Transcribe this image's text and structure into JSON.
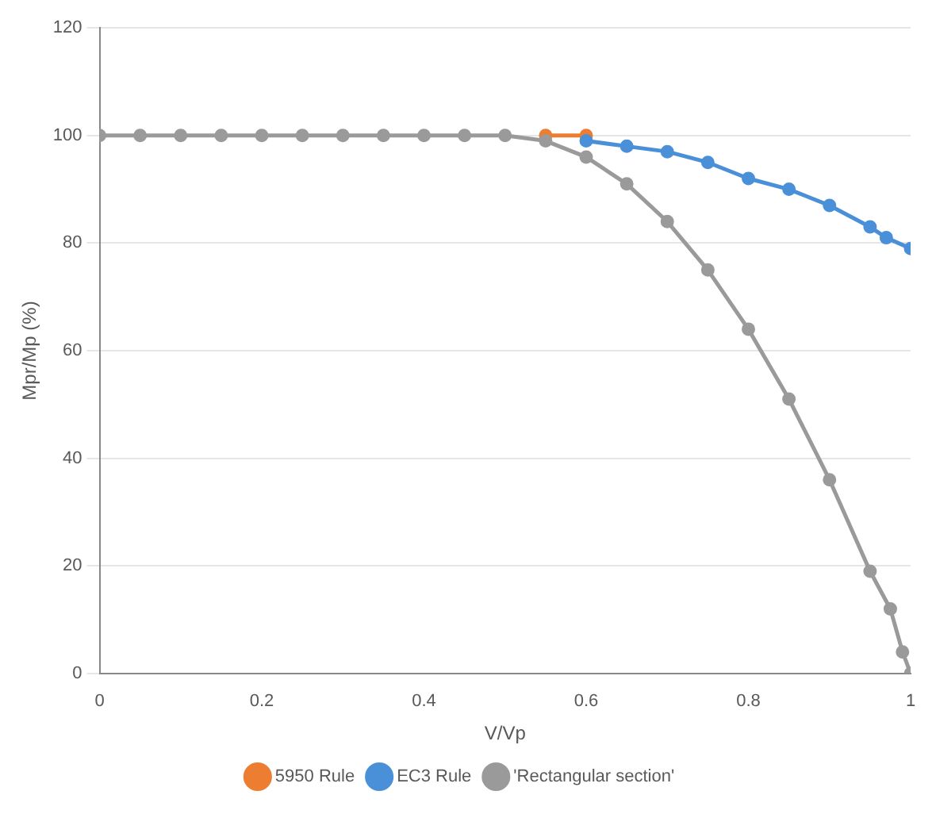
{
  "chart_data": {
    "type": "line",
    "xlabel": "V/Vp",
    "ylabel": "Mpr/Mp (%)",
    "xlim": [
      0,
      1
    ],
    "xticks": [
      0,
      0.2,
      0.4,
      0.6,
      0.8,
      1
    ],
    "ylim": [
      0,
      120
    ],
    "yticks": [
      0,
      20,
      40,
      60,
      80,
      100,
      120
    ],
    "grid": "y",
    "legend": "bottom",
    "marker": "circle",
    "line_style": "solid",
    "series": [
      {
        "name": "5950 Rule",
        "color": "#ed7d31",
        "x": [
          0.55,
          0.6
        ],
        "values": [
          100,
          100
        ]
      },
      {
        "name": "EC3 Rule",
        "color": "#4a90d9",
        "x": [
          0.6,
          0.65,
          0.7,
          0.75,
          0.8,
          0.85,
          0.9,
          0.95,
          0.97,
          1
        ],
        "values": [
          99,
          98,
          97,
          95,
          92,
          90,
          87,
          83,
          81,
          79
        ]
      },
      {
        "name": "'Rectangular section'",
        "color": "#9a9a9a",
        "x": [
          0,
          0.05,
          0.1,
          0.15,
          0.2,
          0.25,
          0.3,
          0.35,
          0.4,
          0.45,
          0.5,
          0.55,
          0.6,
          0.65,
          0.7,
          0.75,
          0.8,
          0.85,
          0.9,
          0.95,
          0.975,
          0.99,
          1
        ],
        "values": [
          100,
          100,
          100,
          100,
          100,
          100,
          100,
          100,
          100,
          100,
          100,
          99,
          96,
          91,
          84,
          75,
          64,
          51,
          36,
          19,
          12,
          4,
          0
        ]
      }
    ]
  }
}
